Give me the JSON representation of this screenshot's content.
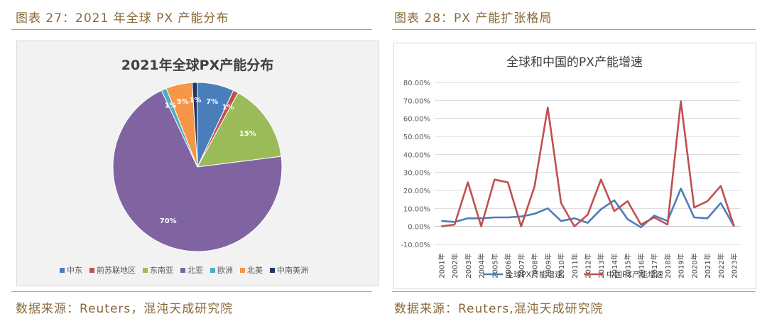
{
  "captions": {
    "left_figure": "图表 27：2021 年全球 PX 产能分布",
    "right_figure": "图表 28：PX 产能扩张格局",
    "left_source": "数据来源：Reuters，混沌天成研究院",
    "right_source": "数据来源：Reuters,混沌天成研究院"
  },
  "chart_data": [
    {
      "type": "pie",
      "title": "2021年全球PX产能分布",
      "legend_position": "bottom",
      "slices": [
        {
          "label": "中东",
          "value": 7,
          "display": "7%",
          "color": "#4a7ebb"
        },
        {
          "label": "前苏联地区",
          "value": 1,
          "display": "1%",
          "color": "#c0504d"
        },
        {
          "label": "东南亚",
          "value": 15,
          "display": "15%",
          "color": "#9bbb59"
        },
        {
          "label": "北亚",
          "value": 70,
          "display": "70%",
          "color": "#8064a2"
        },
        {
          "label": "欧洲",
          "value": 1,
          "display": "1%",
          "color": "#4bacc6"
        },
        {
          "label": "北美",
          "value": 5,
          "display": "5%",
          "color": "#f79646"
        },
        {
          "label": "中南美洲",
          "value": 1,
          "display": "1%",
          "color": "#1f3864"
        }
      ]
    },
    {
      "type": "line",
      "title": "全球和中国的PX产能增速",
      "legend_position": "bottom",
      "grid": true,
      "ylim": [
        -10,
        80
      ],
      "yticks": [
        "-10.00%",
        "0.00%",
        "10.00%",
        "20.00%",
        "30.00%",
        "40.00%",
        "50.00%",
        "60.00%",
        "70.00%",
        "80.00%"
      ],
      "x": [
        "2001年",
        "2002年",
        "2003年",
        "2004年",
        "2005年",
        "2006年",
        "2007年",
        "2008年",
        "2009年",
        "2010年",
        "2011年",
        "2012年",
        "2013年",
        "2014年",
        "2015年",
        "2016年",
        "2017年",
        "2018年",
        "2019年",
        "2020年",
        "2021年",
        "2022年",
        "2023年"
      ],
      "series": [
        {
          "name": "全球PX产能增速",
          "color": "#4a7ebb",
          "values": [
            3,
            2.5,
            4.5,
            4.5,
            5,
            5,
            5.5,
            7,
            10,
            3,
            4.5,
            2,
            9.5,
            14.5,
            4,
            -0.5,
            6,
            3,
            21,
            5,
            4.5,
            13,
            0
          ]
        },
        {
          "name": "中国PX产能增速",
          "color": "#c0504d",
          "values": [
            0,
            1,
            24.5,
            0,
            26,
            24.5,
            0,
            22,
            66,
            13,
            0,
            6.5,
            26,
            8.5,
            14,
            1,
            5,
            1,
            69.5,
            10.5,
            14,
            22.5,
            0
          ]
        }
      ]
    }
  ]
}
